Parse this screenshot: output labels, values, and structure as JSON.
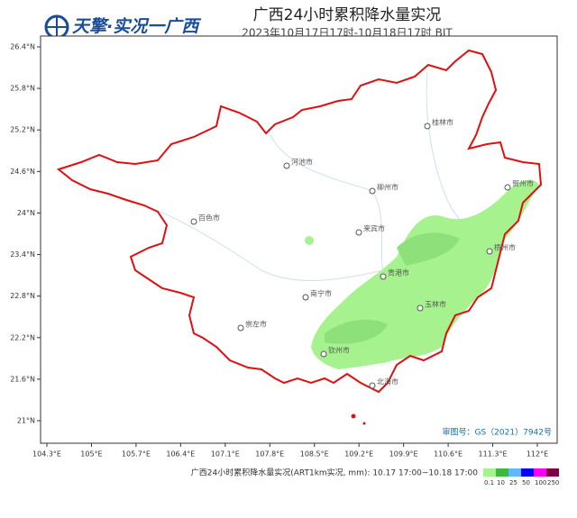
{
  "header": {
    "logo": "天擎·实况一广西",
    "title": "广西24小时累积降水量实况",
    "subtitle": "2023年10月17日17时-10月18日17时 BJT"
  },
  "map": {
    "lat_ticks": [
      {
        "value": 26.4,
        "label": "26.4°N"
      },
      {
        "value": 25.8,
        "label": "25.8°N"
      },
      {
        "value": 25.2,
        "label": "25.2°N"
      },
      {
        "value": 24.6,
        "label": "24.6°N"
      },
      {
        "value": 24,
        "label": "24°N"
      },
      {
        "value": 23.4,
        "label": "23.4°N"
      },
      {
        "value": 22.8,
        "label": "22.8°N"
      },
      {
        "value": 22.2,
        "label": "22.2°N"
      },
      {
        "value": 21.6,
        "label": "21.6°N"
      },
      {
        "value": 21,
        "label": "21°N"
      }
    ],
    "lon_ticks": [
      {
        "value": 104.3,
        "label": "104.3°E"
      },
      {
        "value": 105,
        "label": "105°E"
      },
      {
        "value": 105.7,
        "label": "105.7°E"
      },
      {
        "value": 106.4,
        "label": "106.4°E"
      },
      {
        "value": 107.1,
        "label": "107.1°E"
      },
      {
        "value": 107.8,
        "label": "107.8°E"
      },
      {
        "value": 108.5,
        "label": "108.5°E"
      },
      {
        "value": 109.2,
        "label": "109.2°E"
      },
      {
        "value": 109.9,
        "label": "109.9°E"
      },
      {
        "value": 110.6,
        "label": "110.6°E"
      },
      {
        "value": 111.3,
        "label": "111.3°E"
      },
      {
        "value": 112,
        "label": "112°E"
      }
    ],
    "cities": [
      "桂林市",
      "河池市",
      "柳州市",
      "贺州市",
      "百色市",
      "来宾市",
      "梧州市",
      "贵港市",
      "南宁市",
      "玉林市",
      "崇左市",
      "钦州市",
      "北海市"
    ],
    "approval": "审图号：GS（2021）7942号"
  },
  "legend": {
    "caption": "广西24小时累积降水量实况(ART1km实况, mm): 10.17 17:00~10.18 17:00",
    "levels": [
      0.1,
      10,
      25,
      50,
      100,
      250
    ],
    "colors": [
      "#a6f28f",
      "#3dba3d",
      "#61b8ff",
      "#0000fe",
      "#fa00fa",
      "#810040"
    ]
  }
}
